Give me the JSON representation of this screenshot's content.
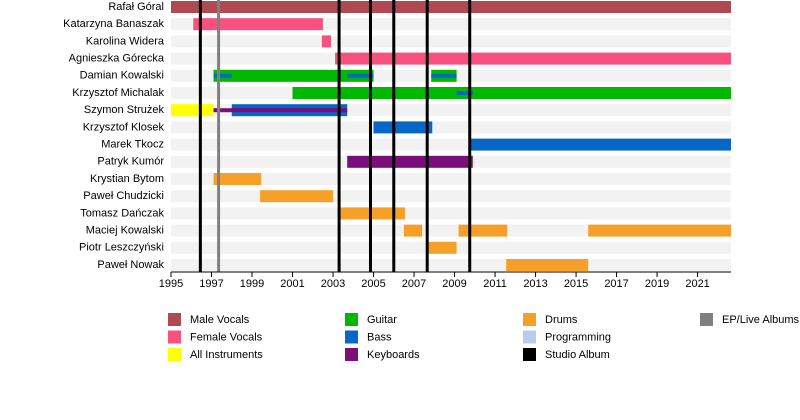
{
  "chart_data": {
    "type": "timeline",
    "categories": [
      "Rafał Góral",
      "Katarzyna Banaszak",
      "Karolina Widera",
      "Agnieszka Górecka",
      "Damian Kowalski",
      "Krzysztof Michalak",
      "Szymon Strużek",
      "Krzysztof Klosek",
      "Marek Tkocz",
      "Patryk Kumór",
      "Krystian Bytom",
      "Paweł Chudzicki",
      "Tomasz Dańczak",
      "Maciej Kowalski",
      "Piotr Leszczyński",
      "Paweł Nowak"
    ],
    "series": [
      {
        "name": "Male Vocals",
        "color": "#b04a52",
        "values": [
          [
            [
              1995,
              2022.65
            ]
          ],
          null,
          null,
          null,
          null,
          null,
          null,
          null,
          null,
          null,
          null,
          null,
          null,
          null,
          null,
          null
        ]
      },
      {
        "name": "Female Vocals",
        "color": "#f7527f",
        "values": [
          null,
          [
            [
              1996.1,
              2002.5
            ]
          ],
          [
            [
              2002.45,
              2002.9
            ]
          ],
          [
            [
              2003.1,
              2022.65
            ]
          ],
          null,
          null,
          null,
          null,
          null,
          null,
          null,
          null,
          null,
          null,
          null,
          null
        ]
      },
      {
        "name": "All Instruments",
        "color": "#ffff00",
        "values": [
          null,
          null,
          null,
          null,
          null,
          null,
          [
            [
              1995,
              1997.1
            ]
          ],
          null,
          null,
          null,
          null,
          null,
          null,
          null,
          null,
          null
        ]
      },
      {
        "name": "Guitar",
        "color": "#00b800",
        "values": [
          null,
          null,
          null,
          null,
          [
            [
              1997.1,
              2005.0
            ],
            [
              2007.85,
              2009.1
            ]
          ],
          [
            [
              2001.0,
              2022.65
            ]
          ],
          null,
          null,
          null,
          null,
          null,
          null,
          null,
          null,
          null,
          null
        ]
      },
      {
        "name": "Bass",
        "color": "#0866c6",
        "values": [
          null,
          null,
          null,
          null,
          [
            [
              1997.1,
              1998.0
            ],
            [
              2003.7,
              2005.0
            ],
            [
              2007.85,
              2009.1
            ]
          ],
          [
            [
              2009.1,
              2009.9
            ]
          ],
          [
            [
              1998.0,
              2003.7
            ]
          ],
          [
            [
              2005.0,
              2007.9
            ]
          ],
          [
            [
              2009.8,
              2022.65
            ]
          ],
          null,
          null,
          null,
          null,
          null,
          null,
          null
        ]
      },
      {
        "name": "Keyboards",
        "color": "#7a0f7a",
        "values": [
          null,
          null,
          null,
          null,
          null,
          null,
          [
            [
              1997.1,
              2003.7
            ]
          ],
          null,
          null,
          [
            [
              2003.7,
              2009.9
            ]
          ],
          null,
          null,
          null,
          null,
          null,
          null
        ]
      },
      {
        "name": "Drums",
        "color": "#f6a02a",
        "values": [
          null,
          null,
          null,
          null,
          null,
          null,
          null,
          null,
          null,
          null,
          [
            [
              1997.1,
              1999.45
            ]
          ],
          [
            [
              1999.4,
              2003.0
            ]
          ],
          [
            [
              2003.35,
              2006.55
            ]
          ],
          [
            [
              2006.5,
              2007.4
            ],
            [
              2009.2,
              2011.6
            ],
            [
              2015.6,
              2022.65
            ]
          ],
          [
            [
              2007.65,
              2009.1
            ]
          ],
          [
            [
              2011.55,
              2015.6
            ]
          ]
        ]
      },
      {
        "name": "Programming",
        "color": "#b6cdf2",
        "values": [
          null,
          null,
          null,
          null,
          null,
          null,
          null,
          null,
          null,
          null,
          null,
          null,
          null,
          null,
          null,
          null
        ]
      }
    ],
    "markers": [
      {
        "name": "Studio Album",
        "color": "#000000",
        "values": [
          1996.45,
          2003.3,
          2004.85,
          2006.0,
          2007.65,
          2009.75
        ]
      },
      {
        "name": "EP/Live Albums",
        "color": "#808080",
        "values": [
          1997.35
        ]
      }
    ],
    "xlim": [
      1995,
      2022.65
    ],
    "xticks": [
      1995,
      1997,
      1999,
      2001,
      2003,
      2005,
      2007,
      2009,
      2011,
      2013,
      2015,
      2017,
      2019,
      2021
    ]
  }
}
